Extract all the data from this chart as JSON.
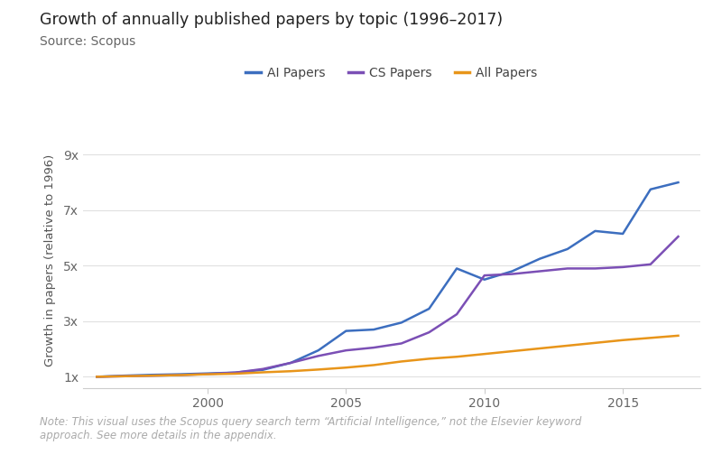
{
  "title": "Growth of annually published papers by topic (1996–2017)",
  "subtitle": "Source: Scopus",
  "note": "Note: This visual uses the Scopus query search term “Artificial Intelligence,” not the Elsevier keyword\napproach. See more details in the appendix.",
  "ylabel": "Growth in papers (relative to 1996)",
  "background_color": "#ffffff",
  "years": [
    1996,
    1997,
    1998,
    1999,
    2000,
    2001,
    2002,
    2003,
    2004,
    2005,
    2006,
    2007,
    2008,
    2009,
    2010,
    2011,
    2012,
    2013,
    2014,
    2015,
    2016,
    2017
  ],
  "ai_papers": [
    1.0,
    1.04,
    1.07,
    1.09,
    1.12,
    1.15,
    1.25,
    1.5,
    1.95,
    2.65,
    2.7,
    2.95,
    3.45,
    4.9,
    4.5,
    4.8,
    5.25,
    5.6,
    6.25,
    6.15,
    7.75,
    8.0
  ],
  "cs_papers": [
    1.0,
    1.02,
    1.04,
    1.06,
    1.1,
    1.15,
    1.28,
    1.5,
    1.75,
    1.95,
    2.05,
    2.2,
    2.6,
    3.25,
    4.65,
    4.7,
    4.8,
    4.9,
    4.9,
    4.95,
    5.05,
    6.05
  ],
  "all_papers": [
    1.0,
    1.02,
    1.04,
    1.06,
    1.09,
    1.11,
    1.16,
    1.2,
    1.26,
    1.33,
    1.42,
    1.55,
    1.65,
    1.72,
    1.82,
    1.92,
    2.02,
    2.12,
    2.22,
    2.32,
    2.4,
    2.48
  ],
  "ai_color": "#3c6ebf",
  "cs_color": "#7b4fb5",
  "all_color": "#e8951a",
  "legend_labels": [
    "AI Papers",
    "CS Papers",
    "All Papers"
  ],
  "ytick_labels": [
    "1x",
    "3x",
    "5x",
    "7x",
    "9x"
  ],
  "ytick_values": [
    1,
    3,
    5,
    7,
    9
  ],
  "ylim": [
    0.6,
    9.8
  ],
  "xlim": [
    1995.5,
    2017.8
  ],
  "xticks": [
    2000,
    2005,
    2010,
    2015
  ],
  "title_fontsize": 12.5,
  "subtitle_fontsize": 10,
  "note_fontsize": 8.5,
  "ylabel_fontsize": 9.5,
  "tick_fontsize": 10,
  "legend_fontsize": 10,
  "line_width": 1.8
}
